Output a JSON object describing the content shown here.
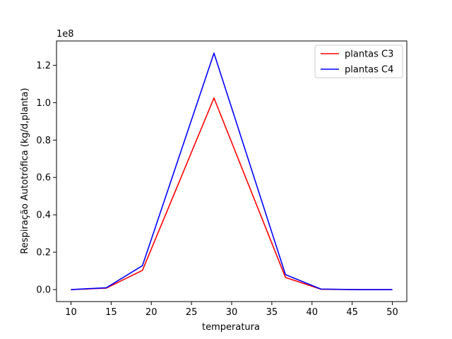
{
  "chart_data": {
    "type": "line",
    "title": "",
    "xlabel": "temperatura",
    "ylabel": "Respiração Autotrófica (kg/d,planta)",
    "y_offset_label": "1e8",
    "xlim": [
      8.2,
      51.8
    ],
    "ylim": [
      -6400000,
      133000000
    ],
    "x_ticks": [
      10,
      15,
      20,
      25,
      30,
      35,
      40,
      45,
      50
    ],
    "y_ticks": [
      0,
      20000000,
      40000000,
      60000000,
      80000000,
      100000000,
      120000000
    ],
    "y_tick_labels": [
      "0.0",
      "0.2",
      "0.4",
      "0.6",
      "0.8",
      "1.0",
      "1.2"
    ],
    "x": [
      10,
      14.4,
      18.9,
      27.8,
      36.7,
      41.1,
      45.6,
      50
    ],
    "series": [
      {
        "name": "plantas C3",
        "color": "#ff0000",
        "values": [
          0,
          800000,
          10300000,
          102500000,
          6500000,
          200000,
          0,
          0
        ]
      },
      {
        "name": "plantas C4",
        "color": "#0000ff",
        "values": [
          0,
          1000000,
          12800000,
          126500000,
          8000000,
          300000,
          0,
          0
        ]
      }
    ],
    "grid": false,
    "legend_position": "top-right"
  }
}
